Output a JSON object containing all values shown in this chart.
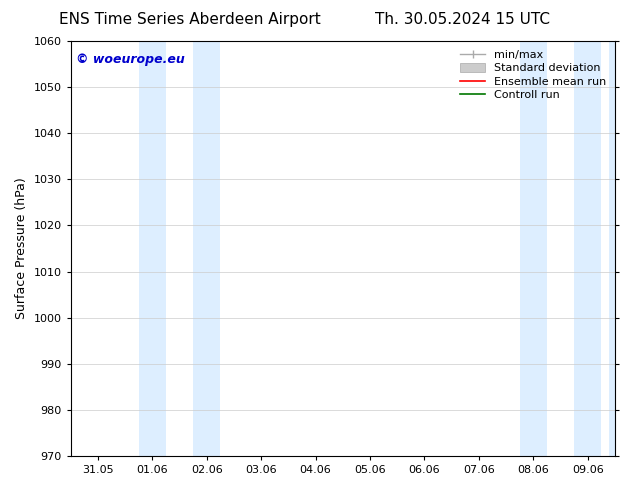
{
  "title_left": "ENS Time Series Aberdeen Airport",
  "title_right": "Th. 30.05.2024 15 UTC",
  "ylabel": "Surface Pressure (hPa)",
  "ylim": [
    970,
    1060
  ],
  "yticks": [
    970,
    980,
    990,
    1000,
    1010,
    1020,
    1030,
    1040,
    1050,
    1060
  ],
  "xtick_labels": [
    "31.05",
    "01.06",
    "02.06",
    "03.06",
    "04.06",
    "05.06",
    "06.06",
    "07.06",
    "08.06",
    "09.06"
  ],
  "xtick_positions": [
    0,
    1,
    2,
    3,
    4,
    5,
    6,
    7,
    8,
    9
  ],
  "xlim": [
    -0.5,
    9.5
  ],
  "shaded_bands": [
    {
      "x_start": 0.75,
      "x_end": 1.25
    },
    {
      "x_start": 1.75,
      "x_end": 2.25
    },
    {
      "x_start": 7.75,
      "x_end": 8.25
    },
    {
      "x_start": 8.75,
      "x_end": 9.25
    },
    {
      "x_start": 9.4,
      "x_end": 9.5
    }
  ],
  "shade_color": "#ddeeff",
  "watermark_text": "© woeurope.eu",
  "watermark_color": "#0000cc",
  "background_color": "#ffffff",
  "grid_color": "#cccccc",
  "title_fontsize": 11,
  "tick_fontsize": 8,
  "ylabel_fontsize": 9,
  "watermark_fontsize": 9,
  "legend_fontsize": 8
}
